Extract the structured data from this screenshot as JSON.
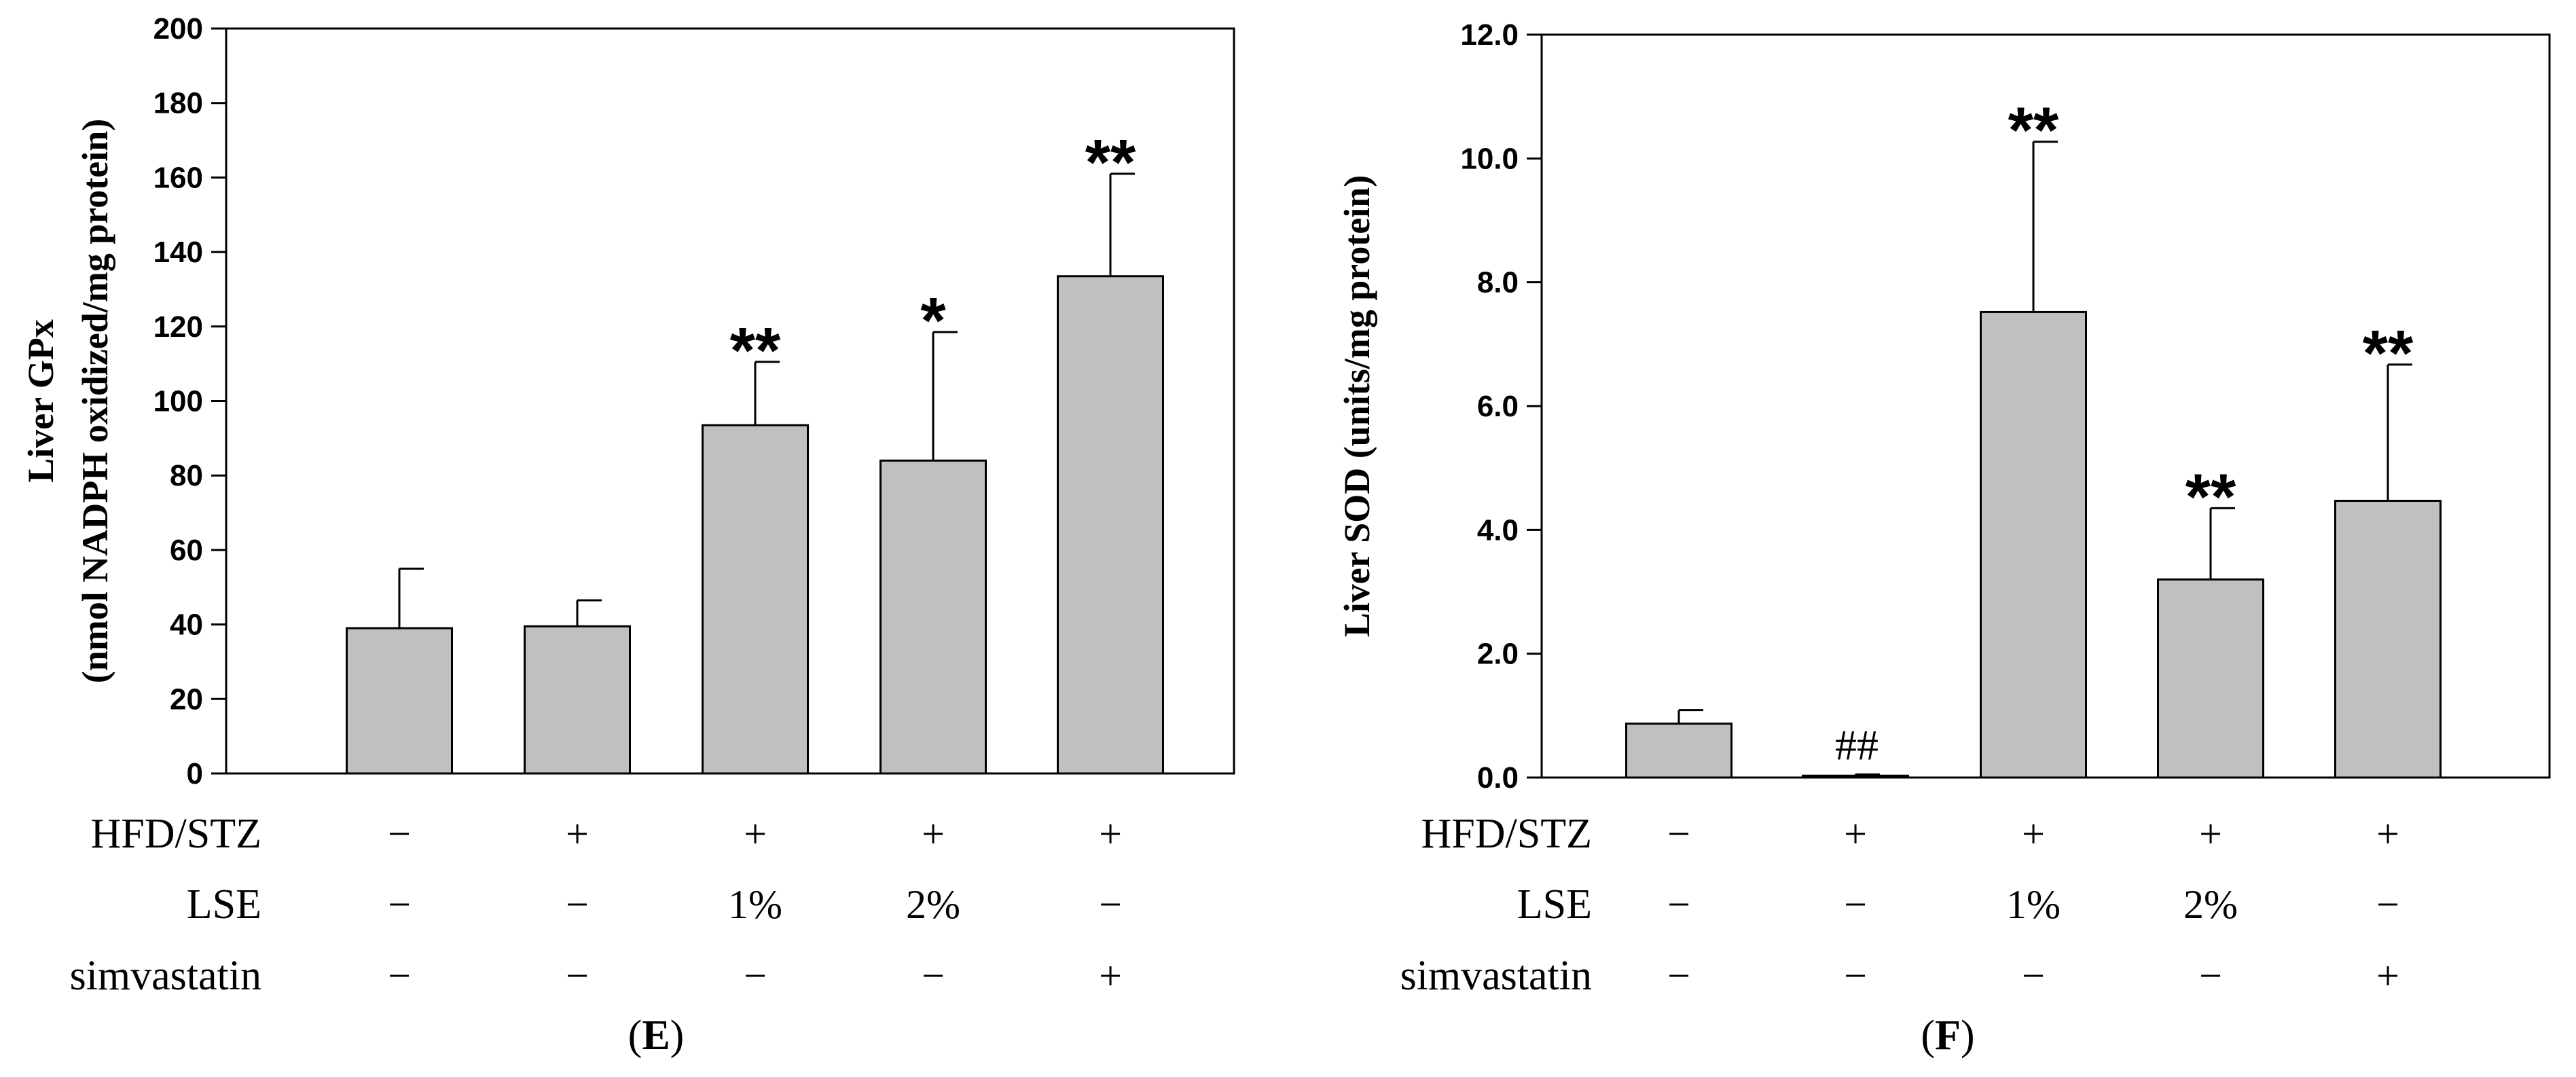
{
  "chart_data": [
    {
      "type": "bar",
      "panel_label": "E",
      "ylabel_line1": "Liver GPx",
      "ylabel_line2": "(nmol NADPH oxidized/mg protein)",
      "ylim": [
        0,
        200
      ],
      "yticks": [
        "0",
        "20",
        "40",
        "60",
        "80",
        "100",
        "120",
        "140",
        "160",
        "180",
        "200"
      ],
      "values": [
        39,
        39.5,
        93.5,
        84,
        133.5
      ],
      "errors": [
        16,
        7,
        17,
        34.5,
        27.5
      ],
      "significance": [
        "",
        "",
        "**",
        "*",
        "**"
      ],
      "row_labels": [
        "HFD/STZ",
        "LSE",
        "simvastatin"
      ],
      "conditions": [
        [
          "−",
          "+",
          "+",
          "+",
          "+"
        ],
        [
          "−",
          "−",
          "1%",
          "2%",
          "−"
        ],
        [
          "−",
          "−",
          "−",
          "−",
          "+"
        ]
      ],
      "bar_color": "#c0c0c0"
    },
    {
      "type": "bar",
      "panel_label": "F",
      "ylabel_line1": "Liver SOD (units/mg protein)",
      "ylabel_line2": "",
      "ylim": [
        0,
        12
      ],
      "yticks": [
        "0.0",
        "2.0",
        "4.0",
        "6.0",
        "8.0",
        "10.0",
        "12.0"
      ],
      "values": [
        0.87,
        0.03,
        7.52,
        3.2,
        4.47
      ],
      "errors": [
        0.22,
        0.02,
        2.75,
        1.15,
        2.2
      ],
      "significance": [
        "",
        "##",
        "**",
        "**",
        "**"
      ],
      "row_labels": [
        "HFD/STZ",
        "LSE",
        "simvastatin"
      ],
      "conditions": [
        [
          "−",
          "+",
          "+",
          "+",
          "+"
        ],
        [
          "−",
          "−",
          "1%",
          "2%",
          "−"
        ],
        [
          "−",
          "−",
          "−",
          "−",
          "+"
        ]
      ],
      "bar_color": "#c0c0c0"
    }
  ]
}
